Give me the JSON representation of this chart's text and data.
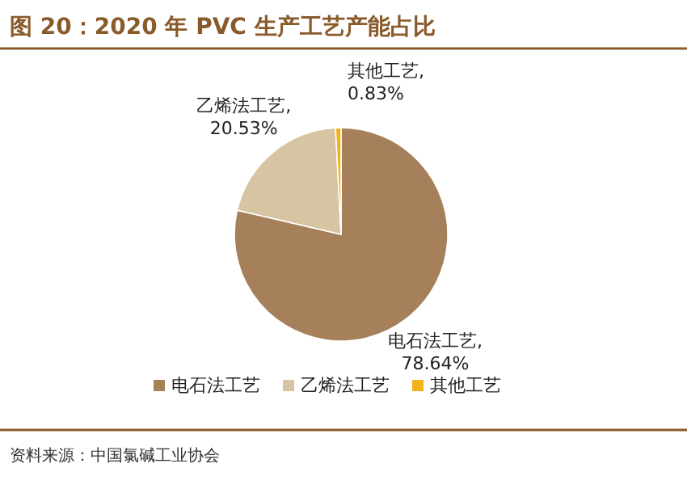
{
  "chart_data": {
    "type": "pie",
    "title": "图 20：2020 年 PVC 生产工艺产能占比",
    "categories": [
      "电石法工艺",
      "乙烯法工艺",
      "其他工艺"
    ],
    "values": [
      78.64,
      20.53,
      0.83
    ],
    "colors": [
      "#a5805a",
      "#d6c4a2",
      "#f2b21b"
    ],
    "value_labels": [
      "电石法工艺,\n78.64%",
      "乙烯法工艺,\n20.53%",
      "其他工艺,\n0.83%"
    ],
    "legend": "bottom",
    "annotations": [
      "资料来源：中国氯碱工业协会"
    ]
  }
}
